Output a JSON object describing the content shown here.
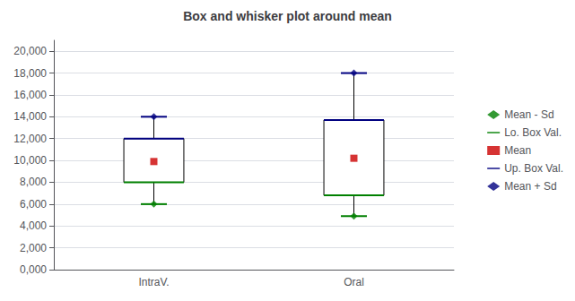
{
  "chart_data": {
    "type": "box",
    "title": "Box and whisker plot around mean",
    "categories": [
      "IntraV.",
      "Oral"
    ],
    "series": [
      {
        "name": "Mean - Sd",
        "color": "#008000",
        "marker": "diamond",
        "values": [
          6000,
          4900
        ]
      },
      {
        "name": "Lo. Box Val.",
        "color": "#008000",
        "values": [
          8000,
          6800
        ]
      },
      {
        "name": "Mean",
        "color": "#cc0000",
        "marker": "square",
        "values": [
          9900,
          10200
        ]
      },
      {
        "name": "Up. Box Val.",
        "color": "#000080",
        "values": [
          12000,
          13700
        ]
      },
      {
        "name": "Mean + Sd",
        "color": "#000080",
        "marker": "diamond",
        "values": [
          14000,
          18000
        ]
      }
    ],
    "ylim": [
      0,
      21000
    ],
    "yticks": [
      {
        "value": 0,
        "label": "0,000"
      },
      {
        "value": 2000,
        "label": "2,000"
      },
      {
        "value": 4000,
        "label": "4,000"
      },
      {
        "value": 6000,
        "label": "6,000"
      },
      {
        "value": 8000,
        "label": "8,000"
      },
      {
        "value": 10000,
        "label": "10,000"
      },
      {
        "value": 12000,
        "label": "12,000"
      },
      {
        "value": 14000,
        "label": "14,000"
      },
      {
        "value": 16000,
        "label": "16,000"
      },
      {
        "value": 18000,
        "label": "18,000"
      },
      {
        "value": 20000,
        "label": "20,000"
      }
    ],
    "grid": true,
    "legend": "right"
  }
}
